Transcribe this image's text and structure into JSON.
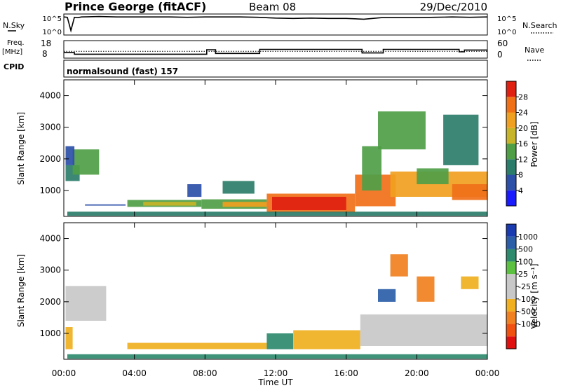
{
  "header": {
    "station": "Prince George (fitACF)",
    "beam": "Beam 08",
    "date": "29/Dec/2010"
  },
  "labels": {
    "nsky": "N.Sky",
    "nsky_ticks": [
      "10^5",
      "10^0"
    ],
    "nsearch": "N.Search",
    "nsearch_ticks": [
      "10^5",
      "10^0"
    ],
    "freq_top": "Freq.",
    "freq_unit": "[MHz]",
    "freq_ticks": [
      "18",
      "8"
    ],
    "nave": "Nave",
    "nave_ticks": [
      "60",
      "0"
    ],
    "cpid": "CPID",
    "cpid_value": "normalsound (fast) 157"
  },
  "chart_data": [
    {
      "type": "line",
      "title": "N.Sky / N.Search",
      "ylim_log10": [
        0,
        5
      ],
      "x_hours": [
        0,
        0.2,
        0.4,
        0.6,
        0.8,
        1,
        2,
        3,
        4,
        5,
        6,
        7,
        8,
        9,
        10,
        11,
        12,
        13,
        14,
        15,
        16,
        17,
        18,
        19,
        20,
        21,
        22,
        23,
        24
      ],
      "series": [
        {
          "values_log10": [
            4.6,
            4.5,
            1.0,
            4.5,
            4.4,
            4.6,
            4.7,
            4.6,
            4.6,
            4.6,
            4.6,
            4.5,
            4.6,
            4.6,
            4.6,
            4.5,
            4.3,
            4.2,
            4.3,
            4.2,
            4.2,
            4.0,
            4.4,
            4.4,
            4.4,
            4.5,
            4.6,
            4.5,
            4.6
          ]
        }
      ]
    },
    {
      "type": "line",
      "title": "Freq. / Nave",
      "ylim": [
        8,
        18
      ],
      "x_hours": [
        0,
        0.6,
        0.6,
        8.1,
        8.1,
        8.6,
        8.6,
        11.1,
        11.1,
        16.9,
        16.9,
        18.1,
        18.1,
        22.4,
        22.4,
        22.7,
        22.7,
        24
      ],
      "series": [
        {
          "name": "Freq.",
          "values": [
            11.0,
            11.0,
            10.0,
            10.0,
            12.8,
            12.8,
            10.5,
            10.5,
            13.0,
            13.0,
            10.8,
            10.8,
            13.0,
            13.0,
            11.5,
            11.5,
            12.6,
            12.6
          ]
        }
      ],
      "nave_dotted_level": 11.8
    },
    {
      "type": "heatmap",
      "title": "Power",
      "ylabel": "Slant Range [km]",
      "xlabel": "Time UT",
      "x_ticks": [
        "00:00",
        "04:00",
        "08:00",
        "12:00",
        "16:00",
        "20:00",
        "00:00"
      ],
      "y_ticks": [
        1000,
        2000,
        3000,
        4000
      ],
      "ylim": [
        180,
        4500
      ],
      "xlim_hours": [
        0,
        24
      ],
      "colorbar_label": "Power [dB]",
      "colorbar_ticks": [
        4,
        8,
        12,
        16,
        20,
        24,
        28
      ],
      "colorbar_colors": [
        "#1a1aff",
        "#2c4fa8",
        "#2b7d6a",
        "#4f9e46",
        "#c8b428",
        "#f0a020",
        "#f07018",
        "#e02010"
      ],
      "bands": [
        {
          "t0": 0.1,
          "t1": 0.9,
          "r0": 1300,
          "r1": 1800,
          "value": 10
        },
        {
          "t0": 0.5,
          "t1": 2.0,
          "r0": 1500,
          "r1": 2300,
          "value": 12
        },
        {
          "t0": 0.1,
          "t1": 0.6,
          "r0": 1800,
          "r1": 2400,
          "value": 6
        },
        {
          "t0": 1.2,
          "t1": 3.5,
          "r0": 520,
          "r1": 560,
          "value": 6
        },
        {
          "t0": 3.6,
          "t1": 7.8,
          "r0": 480,
          "r1": 700,
          "value": 12
        },
        {
          "t0": 4.5,
          "t1": 7.5,
          "r0": 520,
          "r1": 640,
          "value": 18
        },
        {
          "t0": 7.8,
          "t1": 11.5,
          "r0": 420,
          "r1": 720,
          "value": 14
        },
        {
          "t0": 9.0,
          "t1": 11.5,
          "r0": 480,
          "r1": 640,
          "value": 20
        },
        {
          "t0": 11.5,
          "t1": 16.5,
          "r0": 300,
          "r1": 900,
          "value": 26
        },
        {
          "t0": 11.8,
          "t1": 16.0,
          "r0": 380,
          "r1": 800,
          "value": 30
        },
        {
          "t0": 16.5,
          "t1": 18.8,
          "r0": 500,
          "r1": 1500,
          "value": 26
        },
        {
          "t0": 16.9,
          "t1": 18.0,
          "r0": 1000,
          "r1": 2400,
          "value": 14
        },
        {
          "t0": 17.8,
          "t1": 20.5,
          "r0": 2300,
          "r1": 3500,
          "value": 12
        },
        {
          "t0": 18.5,
          "t1": 24.0,
          "r0": 800,
          "r1": 1600,
          "value": 20
        },
        {
          "t0": 20.0,
          "t1": 21.8,
          "r0": 1200,
          "r1": 1700,
          "value": 14
        },
        {
          "t0": 22.0,
          "t1": 24.0,
          "r0": 700,
          "r1": 1200,
          "value": 26
        },
        {
          "t0": 21.5,
          "t1": 23.5,
          "r0": 1800,
          "r1": 3400,
          "value": 8
        },
        {
          "t0": 7.0,
          "t1": 7.8,
          "r0": 800,
          "r1": 1200,
          "value": 6
        },
        {
          "t0": 9.0,
          "t1": 10.8,
          "r0": 900,
          "r1": 1300,
          "value": 8
        },
        {
          "t0": 0.2,
          "t1": 24.0,
          "r0": 200,
          "r1": 330,
          "value": 10
        }
      ]
    },
    {
      "type": "heatmap",
      "title": "Velocity",
      "ylabel": "Slant Range [km]",
      "xlabel": "Time UT",
      "x_ticks": [
        "00:00",
        "04:00",
        "08:00",
        "12:00",
        "16:00",
        "20:00",
        "00:00"
      ],
      "y_ticks": [
        1000,
        2000,
        3000,
        4000
      ],
      "ylim": [
        180,
        4500
      ],
      "xlim_hours": [
        0,
        24
      ],
      "colorbar_label": "Velocity [m s⁻¹]",
      "colorbar_ticks": [
        1000,
        500,
        100,
        25,
        -25,
        -100,
        -500,
        -1000
      ],
      "colorbar_colors": [
        "#1a3ab0",
        "#2c5ea8",
        "#2e8a6c",
        "#5cc040",
        "#c8c8c8",
        "#c8c8c8",
        "#f0b020",
        "#f08020",
        "#f05010",
        "#e01010"
      ],
      "bands": [
        {
          "t0": 0.1,
          "t1": 2.4,
          "r0": 1400,
          "r1": 2500,
          "value": 0
        },
        {
          "t0": 0.1,
          "t1": 0.5,
          "r0": 500,
          "r1": 1200,
          "value": -300
        },
        {
          "t0": 3.6,
          "t1": 11.5,
          "r0": 500,
          "r1": 700,
          "value": -120
        },
        {
          "t0": 11.5,
          "t1": 13.0,
          "r0": 500,
          "r1": 1000,
          "value": 80
        },
        {
          "t0": 13.0,
          "t1": 16.8,
          "r0": 500,
          "r1": 1100,
          "value": -150
        },
        {
          "t0": 16.8,
          "t1": 24.0,
          "r0": 600,
          "r1": 1600,
          "value": 0
        },
        {
          "t0": 17.8,
          "t1": 18.8,
          "r0": 2000,
          "r1": 2400,
          "value": 300
        },
        {
          "t0": 18.5,
          "t1": 19.5,
          "r0": 2800,
          "r1": 3500,
          "value": -400
        },
        {
          "t0": 20.0,
          "t1": 21.0,
          "r0": 2000,
          "r1": 2800,
          "value": -350
        },
        {
          "t0": 22.5,
          "t1": 23.5,
          "r0": 2400,
          "r1": 2800,
          "value": -300
        },
        {
          "t0": 0.2,
          "t1": 24.0,
          "r0": 200,
          "r1": 340,
          "value": 60
        }
      ]
    }
  ]
}
